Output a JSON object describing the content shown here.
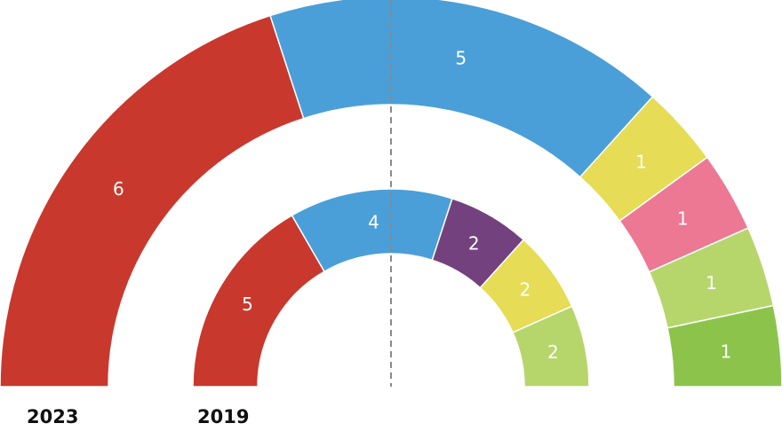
{
  "chart_data": {
    "type": "parliament-semicircle",
    "rings": [
      {
        "label": "2023",
        "segments": [
          {
            "value": 6,
            "color": "#c9382d"
          },
          {
            "value": 5,
            "color": "#4a9fd8"
          },
          {
            "value": 1,
            "color": "#e6dc55"
          },
          {
            "value": 1,
            "color": "#ec7893"
          },
          {
            "value": 1,
            "color": "#b6d66c"
          },
          {
            "value": 1,
            "color": "#8cc44b"
          }
        ]
      },
      {
        "label": "2019",
        "segments": [
          {
            "value": 5,
            "color": "#c9382d"
          },
          {
            "value": 4,
            "color": "#4a9fd8"
          },
          {
            "value": 2,
            "color": "#74417f"
          },
          {
            "value": 2,
            "color": "#e6dc55"
          },
          {
            "value": 2,
            "color": "#b6d66c"
          }
        ]
      }
    ],
    "majority_line": "dashed vertical center line"
  }
}
